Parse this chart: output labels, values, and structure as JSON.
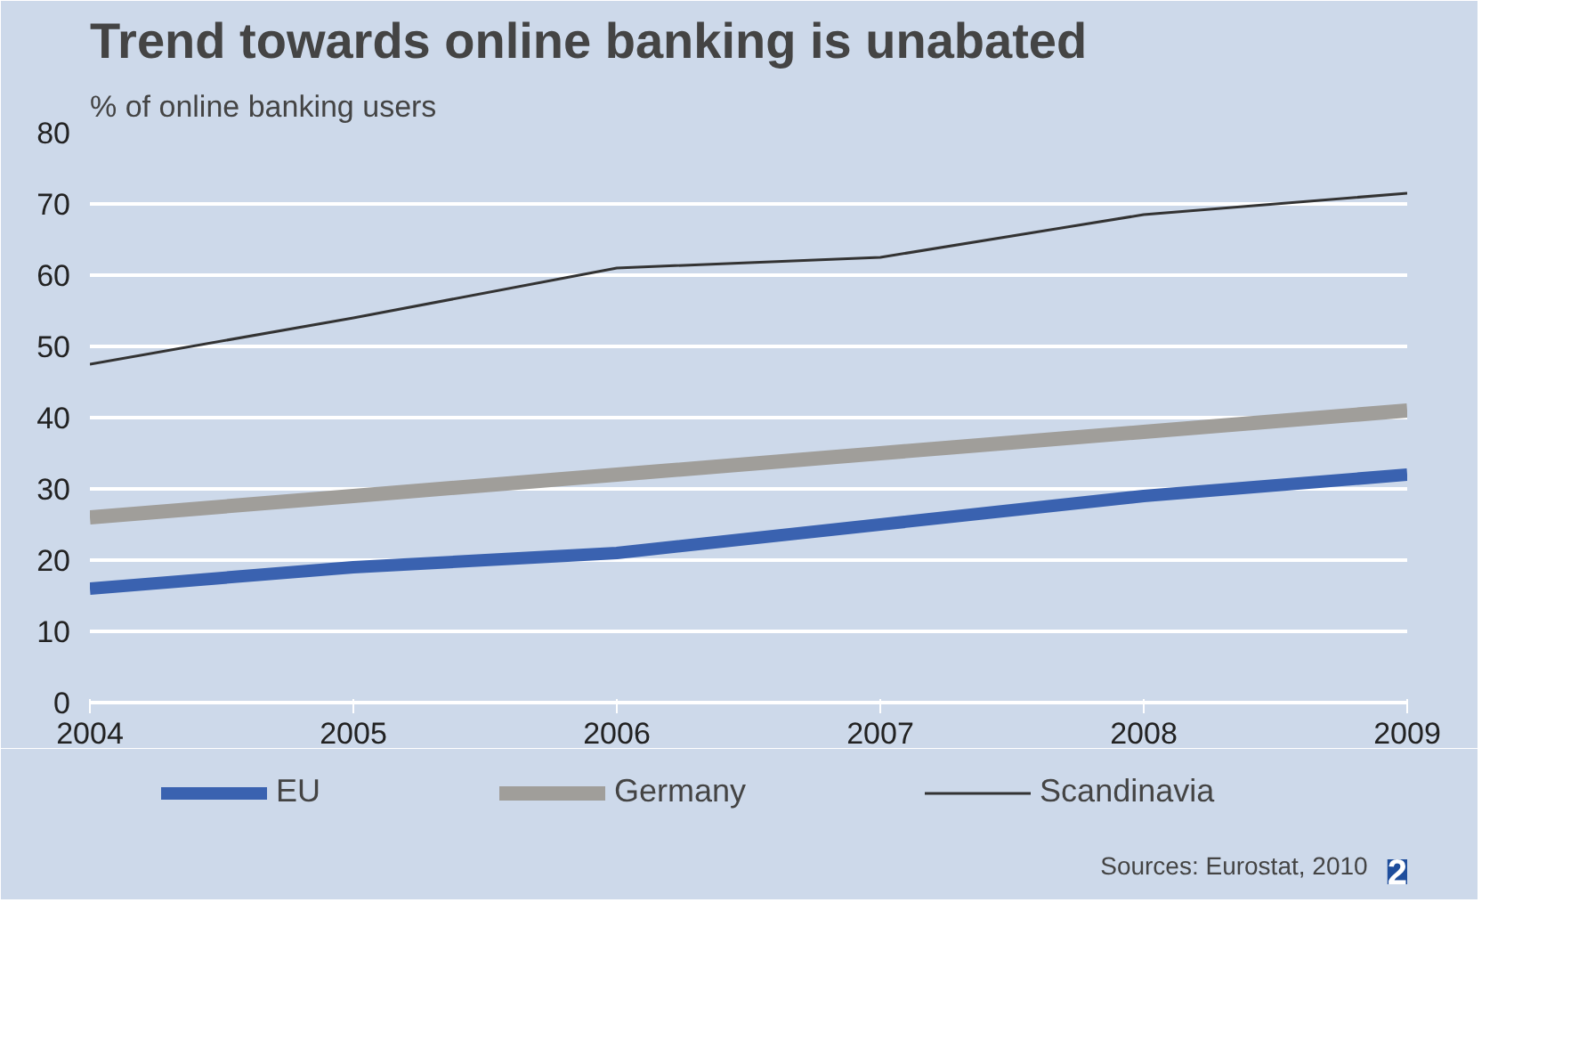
{
  "chart_data": {
    "type": "line",
    "title": "Trend towards online banking is unabated",
    "subtitle": "% of online banking users",
    "x": [
      2004,
      2005,
      2006,
      2007,
      2008,
      2009
    ],
    "xlim": [
      2004,
      2009
    ],
    "xticks": [
      2004,
      2005,
      2006,
      2007,
      2008,
      2009
    ],
    "ylim": [
      0,
      80
    ],
    "yticks": [
      0,
      10,
      20,
      30,
      40,
      50,
      60,
      70,
      80
    ],
    "grid": "y",
    "legend": "bottom",
    "series": [
      {
        "name": "EU",
        "color": "#3a62b0",
        "values": [
          16,
          19,
          21,
          25,
          29,
          32
        ]
      },
      {
        "name": "Germany",
        "color": "#a09e9a",
        "values": [
          26,
          29,
          32,
          35,
          38,
          41
        ]
      },
      {
        "name": "Scandinavia",
        "color": "#333333",
        "values": [
          47.5,
          54,
          61,
          62.5,
          68.5,
          71.5
        ]
      }
    ],
    "annotations": [
      "Sources: Eurostat, 2010",
      "2"
    ]
  }
}
